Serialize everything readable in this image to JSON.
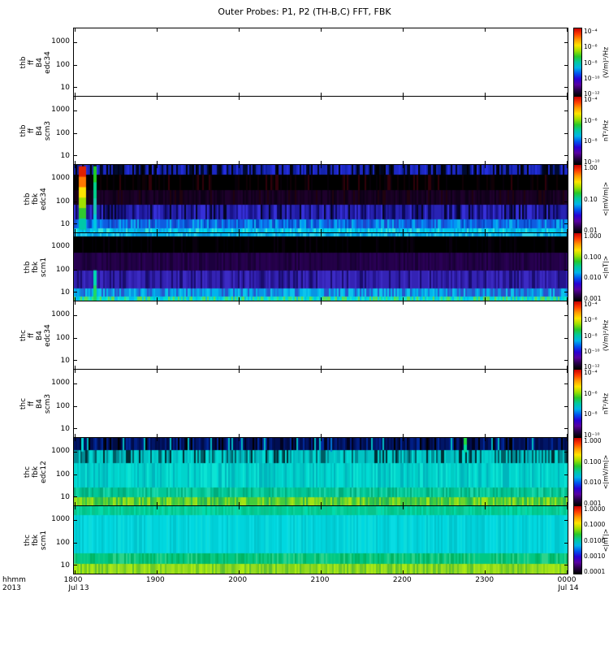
{
  "title": "Outer Probes: P1, P2 (TH-B,C) FFT, FBK",
  "footer": {
    "time_format": "hhmm",
    "year": "2013"
  },
  "x_axis": {
    "ticks": [
      "1800",
      "1900",
      "2000",
      "2100",
      "2200",
      "2300",
      "0000"
    ],
    "date_start": "Jul 13",
    "date_end": "Jul 14"
  },
  "y_ticks": [
    "1000",
    "100",
    "10"
  ],
  "colormap_stops": [
    "#c80000",
    "#ff3c00",
    "#ff9c00",
    "#ffe400",
    "#a0e000",
    "#28c828",
    "#00c8a0",
    "#00b4e8",
    "#0054f0",
    "#2800d4",
    "#5800a0",
    "#280048",
    "#000000"
  ],
  "panels": [
    {
      "id": "thb-ff-B4-edc34",
      "label_lines": [
        "thb",
        "ff",
        "B4",
        "edc34"
      ],
      "type": "empty",
      "colorbar": {
        "ticks": [
          "10⁻⁴",
          "10⁻⁶",
          "10⁻⁸",
          "10⁻¹⁰",
          "10⁻¹²"
        ],
        "unit": "(V/m)²/Hz"
      }
    },
    {
      "id": "thb-ff-B4-scm3",
      "label_lines": [
        "thb",
        "ff",
        "B4",
        "scm3"
      ],
      "type": "empty",
      "colorbar": {
        "ticks": [
          "10⁻⁴",
          "10⁻⁶",
          "10⁻⁸",
          "10⁻¹⁰"
        ],
        "unit": "nT²/Hz"
      }
    },
    {
      "id": "thb-fbk-edc34",
      "label_lines": [
        "thb",
        "fbk",
        "edc34"
      ],
      "type": "spectrogram",
      "seed": 3,
      "colorbar": {
        "ticks": [
          "1.00",
          "0.10",
          "0.01"
        ],
        "unit": "<|mV/m|>"
      },
      "bands": [
        {
          "h": 0.15,
          "palette": [
            "#1c28c4",
            "#1424ac",
            "#000418",
            "#242ee0",
            "#000a30",
            "#0c1c9c",
            "#1c28c4",
            "#000000"
          ]
        },
        {
          "h": 0.23,
          "palette": [
            "#000000",
            "#000000",
            "#000000",
            "#000000",
            "#000000",
            "#070009",
            "#100006",
            "#000000",
            "#30000a",
            "#000000"
          ]
        },
        {
          "h": 0.22,
          "palette": [
            "#160020",
            "#1a0026",
            "#10001a",
            "#1e002c",
            "#0c0016",
            "#20030e",
            "#180022"
          ]
        },
        {
          "h": 0.22,
          "palette": [
            "#2823b4",
            "#201ba0",
            "#0c0858",
            "#3630d8",
            "#181388",
            "#040426",
            "#2823b4"
          ]
        },
        {
          "h": 0.13,
          "palette": [
            "#0f5ce0",
            "#0a78ec",
            "#0098f4",
            "#1c46cc",
            "#08b4ec",
            "#0844c4",
            "#0f5ce0"
          ]
        },
        {
          "h": 0.05,
          "palette": [
            "#00c4ec",
            "#00d8ec",
            "#0ca0ec",
            "#38e4dc",
            "#00acdc",
            "#00c4ec"
          ]
        }
      ],
      "features": [
        {
          "x": 0.01,
          "w": 0.015,
          "y": [
            0.02,
            0.95
          ],
          "colors": [
            "#e02000",
            "#ff7800",
            "#ffe400",
            "#a0e000",
            "#30c830",
            "#00c8a8"
          ]
        },
        {
          "x": 0.04,
          "w": 0.007,
          "y": [
            0.02,
            0.97
          ],
          "colors": [
            "#20cc20",
            "#00d08c",
            "#18c8b0",
            "#00c8e0"
          ]
        }
      ]
    },
    {
      "id": "thb-fbk-scm1",
      "label_lines": [
        "thb",
        "fbk",
        "scm1"
      ],
      "type": "spectrogram",
      "seed": 4,
      "colorbar": {
        "ticks": [
          "1.000",
          "0.100",
          "0.010",
          "0.001"
        ],
        "unit": "<|nT|>"
      },
      "bands": [
        {
          "h": 0.05,
          "palette": [
            "#00b4ec",
            "#14c4ec",
            "#0890dc",
            "#2cd4ec",
            "#00a0e4"
          ]
        },
        {
          "h": 0.24,
          "palette": [
            "#000000",
            "#000000",
            "#000000",
            "#000000",
            "#030007",
            "#090010",
            "#000000",
            "#000000"
          ]
        },
        {
          "h": 0.26,
          "palette": [
            "#220046",
            "#26004e",
            "#1c003e",
            "#2a0056",
            "#180034",
            "#240048"
          ]
        },
        {
          "h": 0.27,
          "palette": [
            "#3423b4",
            "#2c1ba4",
            "#3c2bc4",
            "#24148c",
            "#190c6c",
            "#3423b4"
          ]
        },
        {
          "h": 0.12,
          "palette": [
            "#1874dc",
            "#0894e4",
            "#00b4ec",
            "#2854cc",
            "#0cc4ec"
          ]
        },
        {
          "h": 0.06,
          "palette": [
            "#00d4e4",
            "#1ce4c4",
            "#00bcec",
            "#38e47c",
            "#00dccc",
            "#60dc50"
          ]
        }
      ],
      "features": [
        {
          "x": 0.04,
          "w": 0.006,
          "y": [
            0.55,
            1.0
          ],
          "colors": [
            "#00d8b0",
            "#20d860"
          ]
        }
      ]
    },
    {
      "id": "thc-ff-B4-edc34",
      "label_lines": [
        "thc",
        "ff",
        "B4",
        "edc34"
      ],
      "type": "empty",
      "colorbar": {
        "ticks": [
          "10⁻⁴",
          "10⁻⁶",
          "10⁻⁸",
          "10⁻¹⁰",
          "10⁻¹²"
        ],
        "unit": "(V/m)²/Hz"
      }
    },
    {
      "id": "thc-ff-B4-scm3",
      "label_lines": [
        "thc",
        "ff",
        "B4",
        "scm3"
      ],
      "type": "empty",
      "colorbar": {
        "ticks": [
          "10⁻⁴",
          "10⁻⁶",
          "10⁻⁸",
          "10⁻¹⁰"
        ],
        "unit": "nT²/Hz"
      }
    },
    {
      "id": "thc-fbk-edc12",
      "label_lines": [
        "thc",
        "fbk",
        "edc12"
      ],
      "type": "spectrogram",
      "seed": 7,
      "colorbar": {
        "ticks": [
          "1.000",
          "0.100",
          "0.010",
          "0.001"
        ],
        "unit": "<|mV/m|>"
      },
      "bands": [
        {
          "h": 0.18,
          "palette": [
            "#000e54",
            "#001668",
            "#000320",
            "#001e84",
            "#000000",
            "#000c44",
            "#002a9c",
            "#000e54",
            "#001668",
            "#00bcc4"
          ]
        },
        {
          "h": 0.19,
          "palette": [
            "#00c4c4",
            "#00b4bc",
            "#008c94",
            "#00d4cc",
            "#005c64",
            "#00dcd4",
            "#002e36",
            "#00c4c4"
          ]
        },
        {
          "h": 0.36,
          "palette": [
            "#00d4cc",
            "#00dcd4",
            "#00c4c4",
            "#0ce4d4",
            "#00b4bc",
            "#00ccc4",
            "#00d4cc"
          ]
        },
        {
          "h": 0.15,
          "palette": [
            "#00c898",
            "#00bc8c",
            "#0cd4a4",
            "#00ac7c",
            "#1cd8ac",
            "#00c898"
          ]
        },
        {
          "h": 0.12,
          "palette": [
            "#2cc44c",
            "#44cc3c",
            "#6cd42c",
            "#8cdc1c",
            "#24b454",
            "#a4e414",
            "#44cc3c"
          ]
        }
      ],
      "features": [
        {
          "x": 0.015,
          "w": 0.005,
          "y": [
            0.0,
            0.19
          ],
          "colors": [
            "#00d8d8"
          ]
        },
        {
          "x": 0.79,
          "w": 0.006,
          "y": [
            0.0,
            0.2
          ],
          "colors": [
            "#20dc40",
            "#00dc9c"
          ]
        },
        {
          "x": 0.52,
          "w": 0.004,
          "y": [
            0.0,
            0.19
          ],
          "colors": [
            "#0078d8"
          ]
        }
      ]
    },
    {
      "id": "thc-fbk-scm1",
      "label_lines": [
        "thc",
        "fbk",
        "scm1"
      ],
      "type": "spectrogram",
      "seed": 8,
      "colorbar": {
        "ticks": [
          "1.0000",
          "0.1000",
          "0.0100",
          "0.0010",
          "0.0001"
        ],
        "unit": "<|nT|>"
      },
      "bands": [
        {
          "h": 0.13,
          "palette": [
            "#00cc94",
            "#00c488",
            "#0cd4a0",
            "#00dcac",
            "#08c48c",
            "#00cc94"
          ]
        },
        {
          "h": 0.57,
          "palette": [
            "#00d4dc",
            "#00ccd4",
            "#08dce4",
            "#00c4cc",
            "#0cdcdc",
            "#00d8e0",
            "#00d0d8"
          ]
        },
        {
          "h": 0.16,
          "palette": [
            "#00c884",
            "#0ccc84",
            "#00bc6c",
            "#2cd48c",
            "#00b464",
            "#00c884"
          ]
        },
        {
          "h": 0.14,
          "palette": [
            "#84d418",
            "#94dc20",
            "#6cc828",
            "#a4e418",
            "#5cc030",
            "#acec10",
            "#94dc20"
          ]
        }
      ],
      "features": []
    }
  ],
  "chart_data": {
    "type": "heatmap",
    "subtype": "multi-panel time-frequency spectrogram stack (THEMIS FFT / filter-bank survey)",
    "title": "Outer Probes: P1, P2 (TH-B,C) FFT, FBK",
    "x_axis": {
      "label": "hhmm",
      "start": "2013 Jul 13 1800",
      "end": "2013 Jul 14 0000",
      "ticks": [
        "1800",
        "1900",
        "2000",
        "2100",
        "2200",
        "2300",
        "0000"
      ]
    },
    "y_axis": {
      "scale": "log",
      "tick_labels": [
        "1000",
        "100",
        "10"
      ],
      "implied_units": "Hz"
    },
    "colormap": "rainbow (red = high, through yellow/green/cyan/blue/purple, black = low)",
    "legend_position": "individual colorbar at right of each panel",
    "grid": false,
    "panels": [
      {
        "name": "thb ff B4 edc34",
        "z_unit": "(V/m)²/Hz",
        "z_ticks": [
          "1e-4",
          "1e-6",
          "1e-8",
          "1e-10",
          "1e-12"
        ],
        "content": "blank - no data for interval"
      },
      {
        "name": "thb ff B4 scm3",
        "z_unit": "nT²/Hz",
        "z_ticks": [
          "1e-4",
          "1e-6",
          "1e-8",
          "1e-10"
        ],
        "content": "blank - no data for interval"
      },
      {
        "name": "thb fbk edc34",
        "z_unit": "<|mV/m|>",
        "z_ticks": [
          1.0,
          0.1,
          0.01
        ],
        "content": "6 filter-bank bands, top to bottom: blue ~0.03-0.05 with black dropouts; black <0.01; very dark purple ~0.01; blue-purple ~0.03 striated; bright blue ~0.06; thin cyan bottom row ~0.1. Strong broadband burst near 1805-1810 reaching red/orange/yellow (~0.3-1.0 mV/m) and a green/cyan column near 1815."
      },
      {
        "name": "thb fbk scm1",
        "z_unit": "<|nT|>",
        "z_ticks": [
          1.0,
          0.1,
          0.01,
          0.001
        ],
        "content": "thin cyan top edge ~0.05; black band <0.001; dark purple ~0.002; purple-blue ~0.005; bottom cyan ~0.02-0.05 nT"
      },
      {
        "name": "thc ff B4 edc34",
        "z_unit": "(V/m)²/Hz",
        "z_ticks": [
          "1e-4",
          "1e-6",
          "1e-8",
          "1e-10",
          "1e-12"
        ],
        "content": "blank - no data for interval"
      },
      {
        "name": "thc ff B4 scm3",
        "z_unit": "nT²/Hz",
        "z_ticks": [
          "1e-4",
          "1e-6",
          "1e-8",
          "1e-10"
        ],
        "content": "blank - no data for interval"
      },
      {
        "name": "thc fbk edc12",
        "z_unit": "<|mV/m|>",
        "z_ticks": [
          1.0,
          0.1,
          0.01,
          0.001
        ],
        "content": "top band dark navy/black ~0.001-0.01 with sporadic bright cyan/green columns; middle bands cyan/turquoise ~0.03-0.1; lower teal-green ~0.1; bottom band green to yellow-green ~0.2-0.5 mV/m"
      },
      {
        "name": "thc fbk scm1",
        "z_unit": "<|nT|>",
        "z_ticks": [
          1.0,
          0.1,
          0.01,
          0.001,
          0.0001
        ],
        "content": "teal-green top band ~0.01; broad uniform cyan middle ~0.005; green lower band ~0.01; yellow-green bottom edge ~0.05 nT"
      }
    ]
  }
}
